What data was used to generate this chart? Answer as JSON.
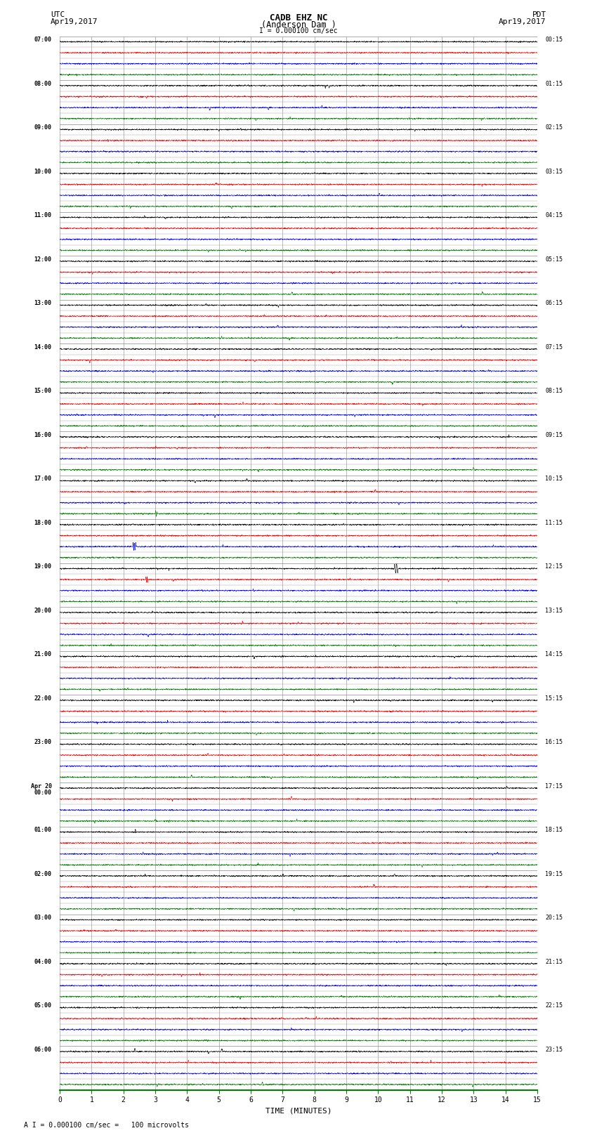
{
  "title_line1": "CADB EHZ NC",
  "title_line2": "(Anderson Dam )",
  "title_line3": "I = 0.000100 cm/sec",
  "left_header1": "UTC",
  "left_header2": "Apr19,2017",
  "right_header1": "PDT",
  "right_header2": "Apr19,2017",
  "xlabel": "TIME (MINUTES)",
  "footer": "A I = 0.000100 cm/sec =   100 microvolts",
  "xlim": [
    0,
    15
  ],
  "xticks": [
    0,
    1,
    2,
    3,
    4,
    5,
    6,
    7,
    8,
    9,
    10,
    11,
    12,
    13,
    14,
    15
  ],
  "left_labels": [
    "07:00",
    "08:00",
    "09:00",
    "10:00",
    "11:00",
    "12:00",
    "13:00",
    "14:00",
    "15:00",
    "16:00",
    "17:00",
    "18:00",
    "19:00",
    "20:00",
    "21:00",
    "22:00",
    "23:00",
    "Apr 20\n00:00",
    "01:00",
    "02:00",
    "03:00",
    "04:00",
    "05:00",
    "06:00"
  ],
  "right_labels": [
    "00:15",
    "01:15",
    "02:15",
    "03:15",
    "04:15",
    "05:15",
    "06:15",
    "07:15",
    "08:15",
    "09:15",
    "10:15",
    "11:15",
    "12:15",
    "13:15",
    "14:15",
    "15:15",
    "16:15",
    "17:15",
    "18:15",
    "19:15",
    "20:15",
    "21:15",
    "22:15",
    "23:15"
  ],
  "trace_colors": [
    "black",
    "red",
    "blue",
    "green"
  ],
  "num_hours": 24,
  "traces_per_hour": 4,
  "noise_amplitude": 0.06,
  "background_color": "white",
  "grid_color": "#888888"
}
